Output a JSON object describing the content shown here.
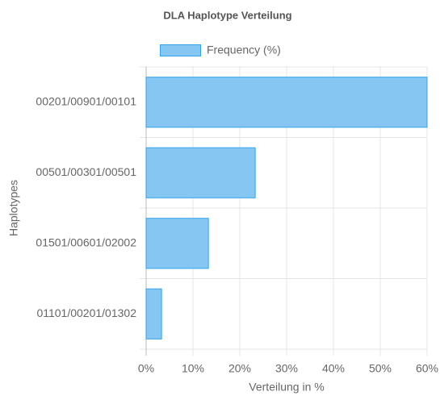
{
  "chart_data": {
    "type": "hbar",
    "title": "DLA Haplotype Verteilung",
    "categories": [
      "00201/00901/00101",
      "00501/00301/00501",
      "01501/00601/02002",
      "01101/00201/01302"
    ],
    "series": [
      {
        "name": "Frequency (%)",
        "color": "#86c6f3",
        "border_color": "#36a2eb",
        "values": [
          60,
          23.3,
          13.3,
          3.3
        ]
      }
    ],
    "xlabel": "Verteilung in %",
    "ylabel": "Haplotypes",
    "xlim": [
      0,
      60
    ],
    "xticks": [
      {
        "value": 0,
        "label": "0%"
      },
      {
        "value": 10,
        "label": "10%"
      },
      {
        "value": 20,
        "label": "20%"
      },
      {
        "value": 30,
        "label": "30%"
      },
      {
        "value": 40,
        "label": "40%"
      },
      {
        "value": 50,
        "label": "50%"
      },
      {
        "value": 60,
        "label": "60%"
      }
    ],
    "grid": true,
    "legend": "top"
  }
}
